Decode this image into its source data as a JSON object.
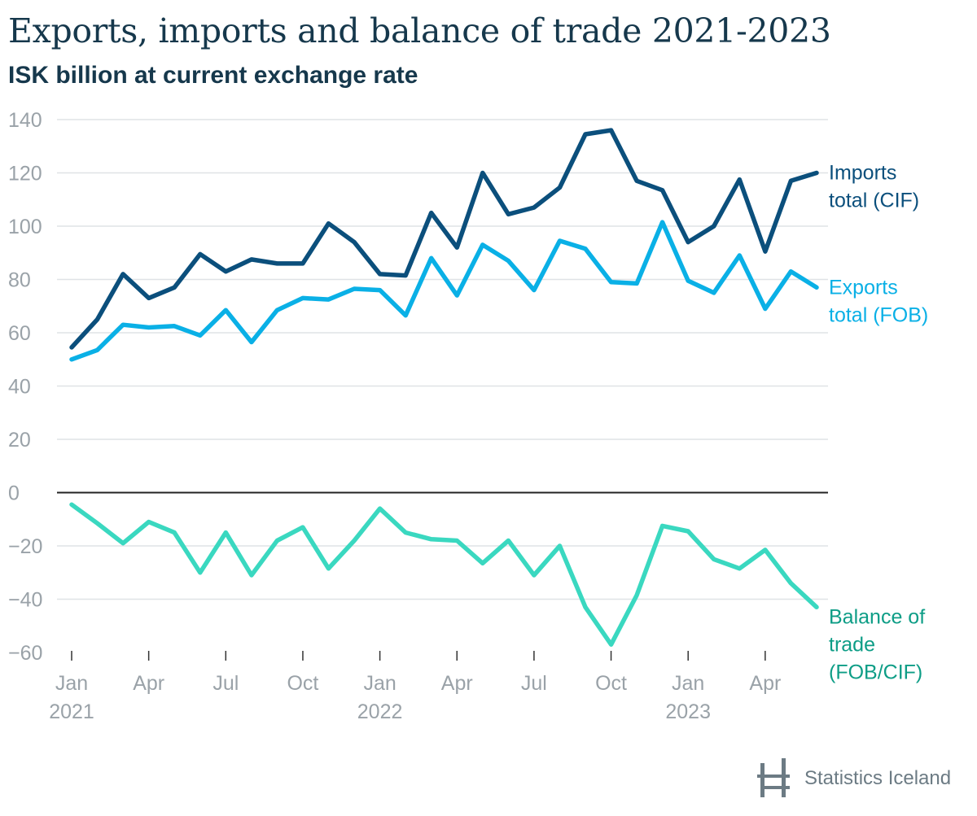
{
  "title": "Exports, imports and balance of trade 2021-2023",
  "subtitle": "ISK billion at current exchange rate",
  "publisher": "Statistics Iceland",
  "colors": {
    "imports": "#0b4f7c",
    "exports": "#0ab0e6",
    "balance": "#3ad8c0",
    "balance_label": "#0d9d86",
    "grid": "#dfe3e6",
    "zero_line": "#222222",
    "ticks": "#9aa2a8"
  },
  "chart_data": {
    "type": "line",
    "title": "Exports, imports and balance of trade 2021-2023",
    "subtitle": "ISK billion at current exchange rate",
    "xlabel": "",
    "ylabel": "",
    "ylim": [
      -60,
      140
    ],
    "yticks": [
      140,
      120,
      100,
      80,
      60,
      40,
      20,
      0,
      -20,
      -40,
      -60
    ],
    "grid": true,
    "legend": "labels at line ends (right)",
    "x": [
      "2021-01",
      "2021-02",
      "2021-03",
      "2021-04",
      "2021-05",
      "2021-06",
      "2021-07",
      "2021-08",
      "2021-09",
      "2021-10",
      "2021-11",
      "2021-12",
      "2022-01",
      "2022-02",
      "2022-03",
      "2022-04",
      "2022-05",
      "2022-06",
      "2022-07",
      "2022-08",
      "2022-09",
      "2022-10",
      "2022-11",
      "2022-12",
      "2023-01",
      "2023-02",
      "2023-03",
      "2023-04",
      "2023-05",
      "2023-06"
    ],
    "xticks": [
      {
        "month_index": 0,
        "label": "Jan",
        "year": "2021"
      },
      {
        "month_index": 3,
        "label": "Apr",
        "year": ""
      },
      {
        "month_index": 6,
        "label": "Jul",
        "year": ""
      },
      {
        "month_index": 9,
        "label": "Oct",
        "year": ""
      },
      {
        "month_index": 12,
        "label": "Jan",
        "year": "2022"
      },
      {
        "month_index": 15,
        "label": "Apr",
        "year": ""
      },
      {
        "month_index": 18,
        "label": "Jul",
        "year": ""
      },
      {
        "month_index": 21,
        "label": "Oct",
        "year": ""
      },
      {
        "month_index": 24,
        "label": "Jan",
        "year": "2023"
      },
      {
        "month_index": 27,
        "label": "Apr",
        "year": ""
      }
    ],
    "series": [
      {
        "key": "imports",
        "label_lines": [
          "Imports",
          "total (CIF)"
        ],
        "values": [
          54.5,
          65,
          82,
          73,
          77,
          89.5,
          83,
          87.5,
          86,
          86,
          101,
          94,
          82,
          81.5,
          105,
          92,
          120,
          104.5,
          107,
          114.5,
          134.5,
          136,
          117,
          113.5,
          94,
          100,
          117.5,
          90.5,
          117,
          120
        ]
      },
      {
        "key": "exports",
        "label_lines": [
          "Exports",
          "total (FOB)"
        ],
        "values": [
          50,
          53.5,
          63,
          62,
          62.5,
          59,
          68.5,
          56.5,
          68.5,
          73,
          72.5,
          76.5,
          76,
          66.5,
          88,
          74,
          93,
          87,
          76,
          94.5,
          91.5,
          79,
          78.5,
          101.5,
          79.5,
          75,
          89,
          69,
          83,
          77
        ]
      },
      {
        "key": "balance",
        "label_lines": [
          "Balance of",
          "trade",
          "(FOB/CIF)"
        ],
        "values": [
          -4.5,
          -11.5,
          -19,
          -11,
          -15,
          -30,
          -15,
          -31,
          -18,
          -13,
          -28.5,
          -18,
          -6,
          -15,
          -17.5,
          -18,
          -26.5,
          -18,
          -31,
          -20,
          -43,
          -57,
          -38.5,
          -12.5,
          -14.5,
          -25,
          -28.5,
          -21.5,
          -34,
          -43
        ]
      }
    ]
  }
}
